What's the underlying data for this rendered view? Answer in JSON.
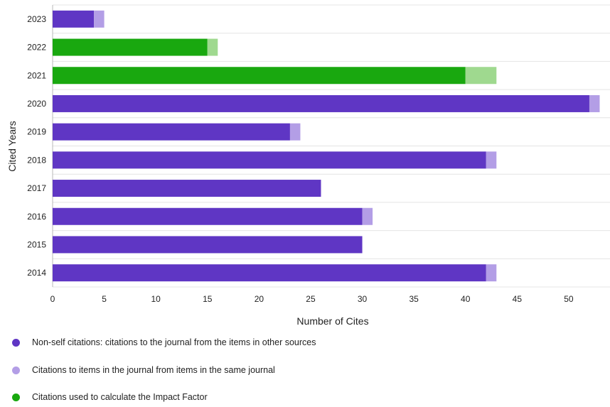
{
  "chart_data": {
    "type": "bar",
    "orientation": "horizontal",
    "stacked": true,
    "title": "",
    "xlabel": "Number of Cites",
    "ylabel": "Cited Years",
    "xlim": [
      0,
      54
    ],
    "xticks": [
      "0",
      "5",
      "10",
      "15",
      "20",
      "25",
      "30",
      "35",
      "40",
      "45",
      "50"
    ],
    "grid": true,
    "legend_placement": "bottom-left",
    "categories": [
      "2023",
      "2022",
      "2021",
      "2020",
      "2019",
      "2018",
      "2017",
      "2016",
      "2015",
      "2014"
    ],
    "impact_factor_years": [
      "2022",
      "2021"
    ],
    "series": [
      {
        "key": "non_self",
        "values": [
          4,
          15,
          40,
          52,
          23,
          42,
          26,
          30,
          30,
          42
        ]
      },
      {
        "key": "self",
        "values": [
          1,
          1,
          3,
          1,
          1,
          1,
          0,
          1,
          0,
          1
        ]
      }
    ],
    "colors": {
      "non_self": "#5f36c4",
      "self": "#b39ee6",
      "impact_factor": "#19a80f",
      "impact_factor_self": "#9fd98f",
      "grid": "#e4e4e4",
      "baseline": "#b8b8b8"
    },
    "legend": [
      {
        "label": "Non-self citations: citations to the journal from the items in other sources",
        "color": "#5f36c4"
      },
      {
        "label": "Citations to items in the journal from items in the same journal",
        "color": "#b39ee6"
      },
      {
        "label": "Citations used to calculate the Impact Factor",
        "color": "#19a80f"
      }
    ]
  }
}
